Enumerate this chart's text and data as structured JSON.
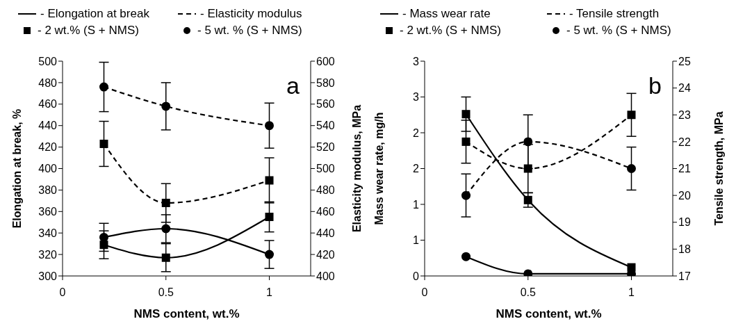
{
  "chart_data": [
    {
      "type": "line",
      "xlabel": "NMS content, wt.%",
      "ylabel": "Elongation at break, %",
      "y2label": "Elasticity modulus, MPa",
      "annotations": [
        "- Elongation at break",
        "- Elasticity modulus",
        "- 2 wt.% (S + NMS)",
        "- 5 wt. % (S + NMS)",
        "a"
      ],
      "x": [
        0.2,
        0.5,
        1
      ],
      "xlim": [
        0,
        1.2
      ],
      "xticks": [
        0,
        0.5,
        1
      ],
      "ylim": [
        300,
        500
      ],
      "yticks": [
        300,
        320,
        340,
        360,
        380,
        400,
        420,
        440,
        460,
        480,
        500
      ],
      "y2lim": [
        400,
        600
      ],
      "y2ticks": [
        400,
        420,
        440,
        460,
        480,
        500,
        520,
        540,
        560,
        580,
        600
      ],
      "grid": false,
      "series": [
        {
          "color": "#000000",
          "marker": "square",
          "line_style": "solid",
          "values": [
            329,
            317,
            355
          ],
          "errors": [
            13,
            13,
            14
          ]
        },
        {
          "color": "#000000",
          "marker": "circle",
          "line_style": "solid",
          "values": [
            336,
            344,
            320
          ],
          "errors": [
            13,
            13,
            13
          ]
        },
        {
          "color": "#000000",
          "marker": "square",
          "line_style": "dashed",
          "axis": "y2",
          "values": [
            523,
            468,
            489
          ],
          "errors": [
            21,
            18,
            21
          ]
        },
        {
          "color": "#000000",
          "marker": "circle",
          "line_style": "dashed",
          "axis": "y2",
          "values": [
            576,
            558,
            540
          ],
          "errors": [
            23,
            22,
            21
          ]
        }
      ]
    },
    {
      "type": "line",
      "xlabel": "NMS content, wt.%",
      "ylabel": "Mass wear rate, mg/h",
      "y2label": "Tensile strength, MPa",
      "annotations": [
        "- Mass wear rate",
        "- Tensile strength",
        "- 2 wt.% (S + NMS)",
        "- 5 wt. % (S + NMS)",
        "b"
      ],
      "x": [
        0.2,
        0.5,
        1
      ],
      "xlim": [
        0,
        1.2
      ],
      "xticks": [
        0,
        0.5,
        1
      ],
      "ylim": [
        0,
        3
      ],
      "yticks": [
        0,
        {
          "value": 0.5,
          "label": "1"
        },
        1,
        {
          "value": 1.5,
          "label": "2"
        },
        2,
        {
          "value": 2.5,
          "label": "3"
        },
        3
      ],
      "y2lim": [
        17,
        25
      ],
      "y2ticks": [
        17,
        18,
        19,
        20,
        21,
        22,
        23,
        24,
        25
      ],
      "grid": false,
      "series": [
        {
          "color": "#000000",
          "marker": "square",
          "line_style": "solid",
          "values": [
            2.26,
            1.06,
            0.12
          ],
          "errors": [
            0.24,
            0.1,
            null
          ]
        },
        {
          "color": "#000000",
          "marker": "circle",
          "line_style": "solid",
          "values": [
            0.27,
            0.03,
            0.03
          ]
        },
        {
          "color": "#000000",
          "marker": "square",
          "line_style": "dashed",
          "axis": "y2",
          "values": [
            22.0,
            21.0,
            23.0
          ],
          "errors": [
            0.8,
            0.9,
            0.8
          ]
        },
        {
          "color": "#000000",
          "marker": "circle",
          "line_style": "dashed",
          "axis": "y2",
          "values": [
            20.0,
            22.0,
            21.0
          ],
          "errors": [
            0.8,
            1.0,
            0.8
          ]
        }
      ]
    }
  ]
}
